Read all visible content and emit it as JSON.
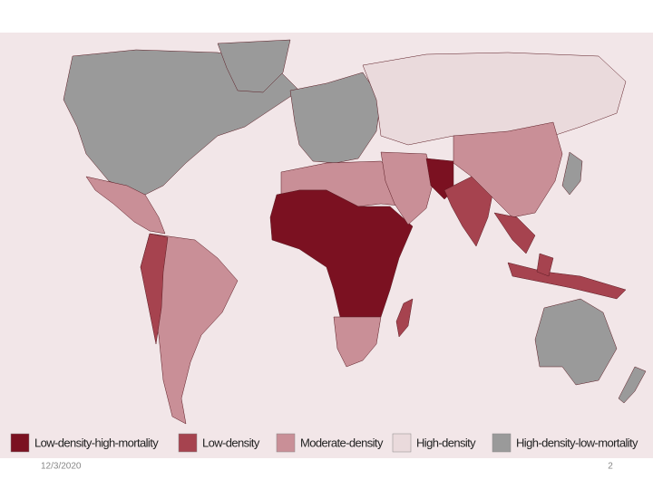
{
  "legend": [
    {
      "label": "Low-density-high-mortality",
      "color": "#7b1121"
    },
    {
      "label": "Low-density",
      "color": "#a6434f"
    },
    {
      "label": "Moderate-density",
      "color": "#c98f97"
    },
    {
      "label": "High-density",
      "color": "#eadadc"
    },
    {
      "label": "High-density-low-mortality",
      "color": "#9a9a9a"
    }
  ],
  "footer": {
    "date": "12/3/2020",
    "page": "2"
  }
}
